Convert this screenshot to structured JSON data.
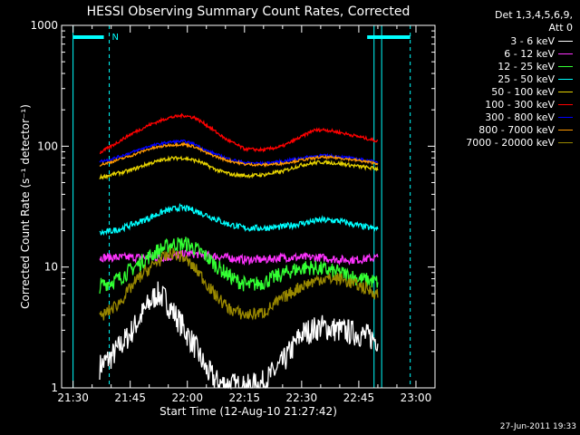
{
  "chart_data": {
    "type": "line",
    "title": "HESSI Observing Summary Count Rates, Corrected",
    "xlabel": "Start Time (12-Aug-10 21:27:42)",
    "ylabel": "Corrected Count Rate (s⁻¹ detector⁻¹)",
    "xlim_minutes_after_2130": [
      -3,
      95
    ],
    "x_ticks": [
      "21:30",
      "21:45",
      "22:00",
      "22:15",
      "22:30",
      "22:45",
      "23:00"
    ],
    "x_ticks_minutes_after_2130": [
      0,
      15,
      30,
      45,
      60,
      75,
      90
    ],
    "yscale": "log",
    "ylim": [
      1,
      1000
    ],
    "y_ticks": [
      "1",
      "10",
      "100",
      "1000"
    ],
    "legend_title": [
      "Det 1,3,4,5,6,9,",
      "Att 0"
    ],
    "legend_position": "right",
    "markers": {
      "text": "N",
      "dashed_minutes_after_2130": [
        9.5,
        88.5
      ],
      "solid_minutes_after_2130": [
        0,
        79,
        81
      ]
    },
    "series": [
      {
        "name": "3 - 6 keV",
        "color": "#ffffff",
        "noise": 0.25,
        "x": [
          7,
          10,
          15,
          18,
          20,
          22,
          24,
          28,
          32,
          35,
          38,
          42,
          45,
          50,
          55,
          60,
          65,
          70,
          75,
          80
        ],
        "y": [
          1.5,
          1.8,
          2.8,
          4,
          5,
          6,
          5.5,
          3.5,
          2.2,
          1.4,
          1.1,
          1.05,
          1,
          1.1,
          1.6,
          2.8,
          3.2,
          3,
          2.8,
          2.5
        ]
      },
      {
        "name": "6 - 12 keV",
        "color": "#ff33ff",
        "noise": 0.08,
        "x": [
          7,
          15,
          20,
          25,
          30,
          35,
          40,
          45,
          50,
          55,
          60,
          65,
          70,
          75,
          80
        ],
        "y": [
          12,
          12,
          12,
          12,
          13,
          12.5,
          12,
          11.5,
          11.5,
          12,
          12,
          12,
          11.5,
          11.5,
          12
        ]
      },
      {
        "name": "12 - 25 keV",
        "color": "#33ff33",
        "noise": 0.15,
        "x": [
          7,
          12,
          17,
          22,
          26,
          30,
          34,
          38,
          42,
          46,
          50,
          54,
          58,
          62,
          66,
          70,
          75,
          80
        ],
        "y": [
          7,
          8,
          10.5,
          13.5,
          15.5,
          15.5,
          13,
          10,
          8,
          7,
          7.5,
          8.5,
          9.5,
          10,
          9.5,
          9,
          8,
          7.5
        ]
      },
      {
        "name": "25 - 50 keV",
        "color": "#00ffff",
        "noise": 0.06,
        "x": [
          7,
          12,
          18,
          24,
          28,
          31,
          35,
          40,
          45,
          50,
          55,
          60,
          65,
          70,
          75,
          80
        ],
        "y": [
          19,
          20.5,
          24,
          29,
          31,
          30,
          27,
          23,
          21,
          21,
          21.5,
          23,
          24.5,
          24,
          22,
          20.5
        ]
      },
      {
        "name": "50 - 100 keV",
        "color": "#e6d200",
        "noise": 0.035,
        "x": [
          7,
          10,
          15,
          20,
          25,
          29,
          33,
          38,
          42,
          46,
          50,
          55,
          60,
          65,
          70,
          75,
          80
        ],
        "y": [
          55,
          58,
          63,
          72,
          79,
          80,
          75,
          63,
          58,
          57,
          58,
          62,
          70,
          74,
          72,
          68,
          65
        ]
      },
      {
        "name": "100 - 300 keV",
        "color": "#ff0000",
        "noise": 0.03,
        "x": [
          7,
          10,
          15,
          20,
          25,
          29,
          32,
          35,
          40,
          45,
          50,
          55,
          60,
          63,
          66,
          70,
          75,
          80
        ],
        "y": [
          88,
          100,
          125,
          150,
          172,
          180,
          172,
          150,
          115,
          95,
          93,
          100,
          120,
          135,
          137,
          130,
          120,
          110
        ]
      },
      {
        "name": "300 - 800 keV",
        "color": "#0000ff",
        "noise": 0.025,
        "x": [
          7,
          10,
          15,
          20,
          25,
          29,
          32,
          35,
          40,
          45,
          50,
          55,
          60,
          65,
          70,
          75,
          80
        ],
        "y": [
          75,
          78,
          88,
          100,
          108,
          110,
          104,
          92,
          80,
          73,
          72,
          75,
          80,
          84,
          82,
          78,
          74
        ]
      },
      {
        "name": "800 - 7000 keV",
        "color": "#ff9900",
        "noise": 0.025,
        "x": [
          7,
          10,
          15,
          20,
          25,
          29,
          32,
          35,
          40,
          45,
          50,
          55,
          60,
          65,
          70,
          75,
          80
        ],
        "y": [
          70,
          74,
          83,
          95,
          102,
          104,
          99,
          88,
          77,
          71,
          70,
          72,
          77,
          81,
          80,
          76,
          72
        ]
      },
      {
        "name": "7000 - 20000 keV",
        "color": "#998800",
        "noise": 0.12,
        "x": [
          7,
          12,
          17,
          22,
          26,
          29,
          33,
          37,
          41,
          45,
          50,
          55,
          60,
          65,
          70,
          75,
          80
        ],
        "y": [
          3.8,
          5,
          8,
          11,
          13,
          12,
          9,
          6,
          4.5,
          4,
          4.2,
          5.5,
          7,
          8,
          8,
          7,
          6
        ]
      }
    ]
  },
  "footer_date": "27-Jun-2011 19:33"
}
